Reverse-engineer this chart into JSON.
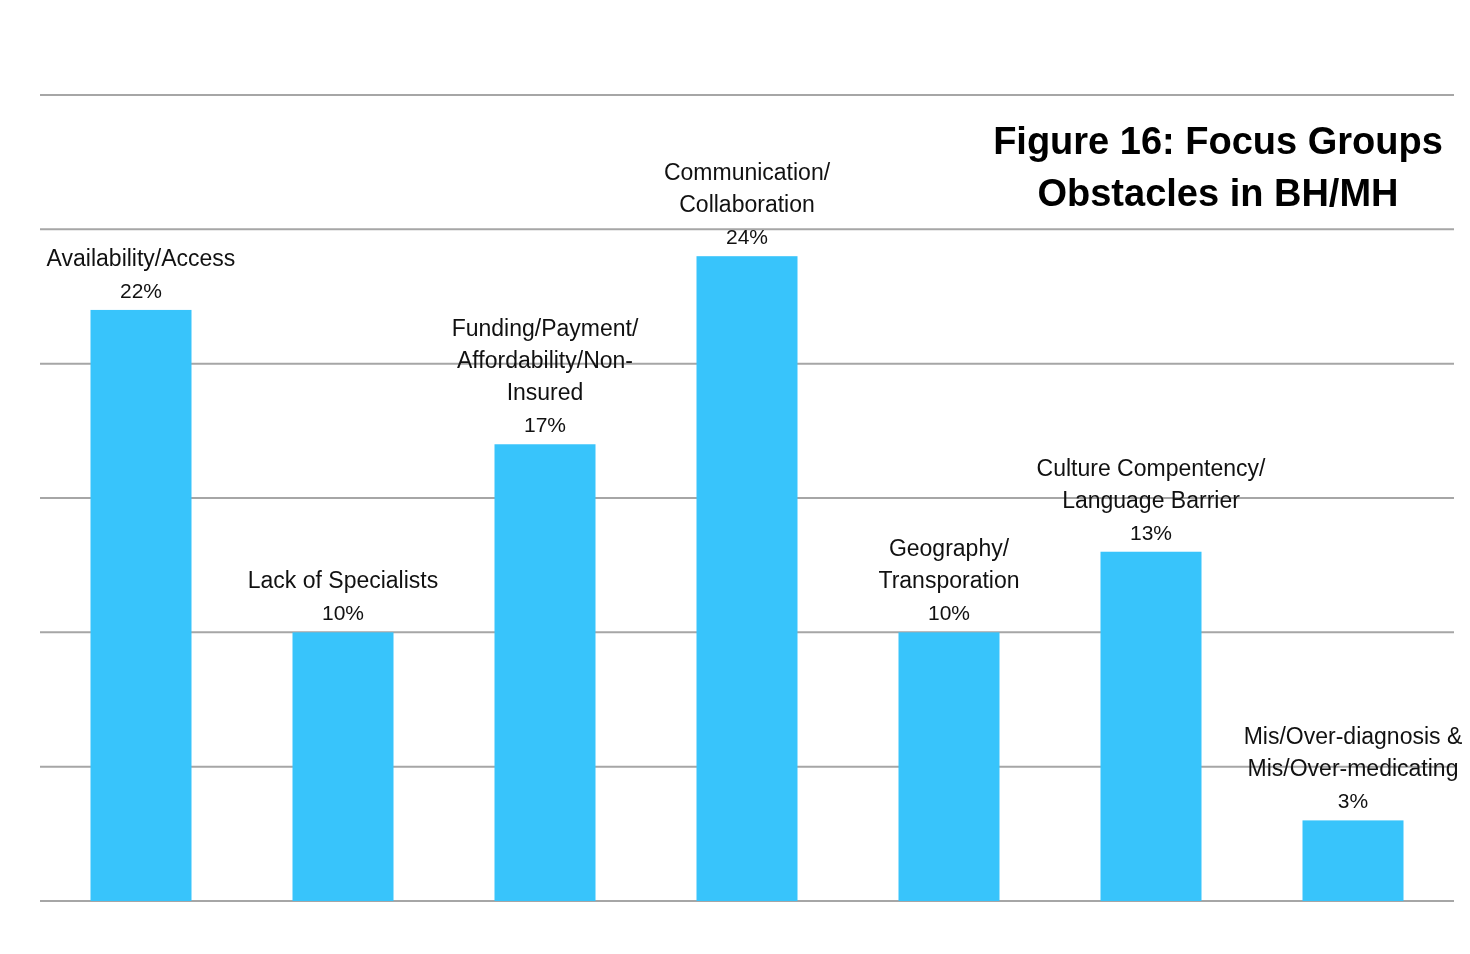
{
  "chart_data": {
    "type": "bar",
    "title": "Figure 16: Focus Groups Obstacles in BH/MH",
    "categories": [
      "Availability/Access",
      "Lack of Specialists",
      "Funding/Payment/Affordability/Non-Insured",
      "Communication/Collaboration",
      "Geography/Transporation",
      "Culture Compentency/Language Barrier",
      "Mis/Over-diagnosis & Mis/Over-medicating"
    ],
    "values": [
      22,
      10,
      17,
      24,
      10,
      13,
      3
    ],
    "value_labels": [
      "22%",
      "10%",
      "17%",
      "24%",
      "10%",
      "13%",
      "3%"
    ],
    "color": "#38c4fb",
    "ylim": [
      0,
      30
    ],
    "yticks": [
      {
        "value": 0,
        "label": null
      },
      {
        "value": 5,
        "label": null
      },
      {
        "value": 10,
        "label": null
      },
      {
        "value": 15,
        "label": null
      },
      {
        "value": 20,
        "label": null
      },
      {
        "value": 25,
        "label": null
      },
      {
        "value": 30,
        "label": null
      }
    ],
    "grid": "y",
    "tick_labels": "x"
  }
}
